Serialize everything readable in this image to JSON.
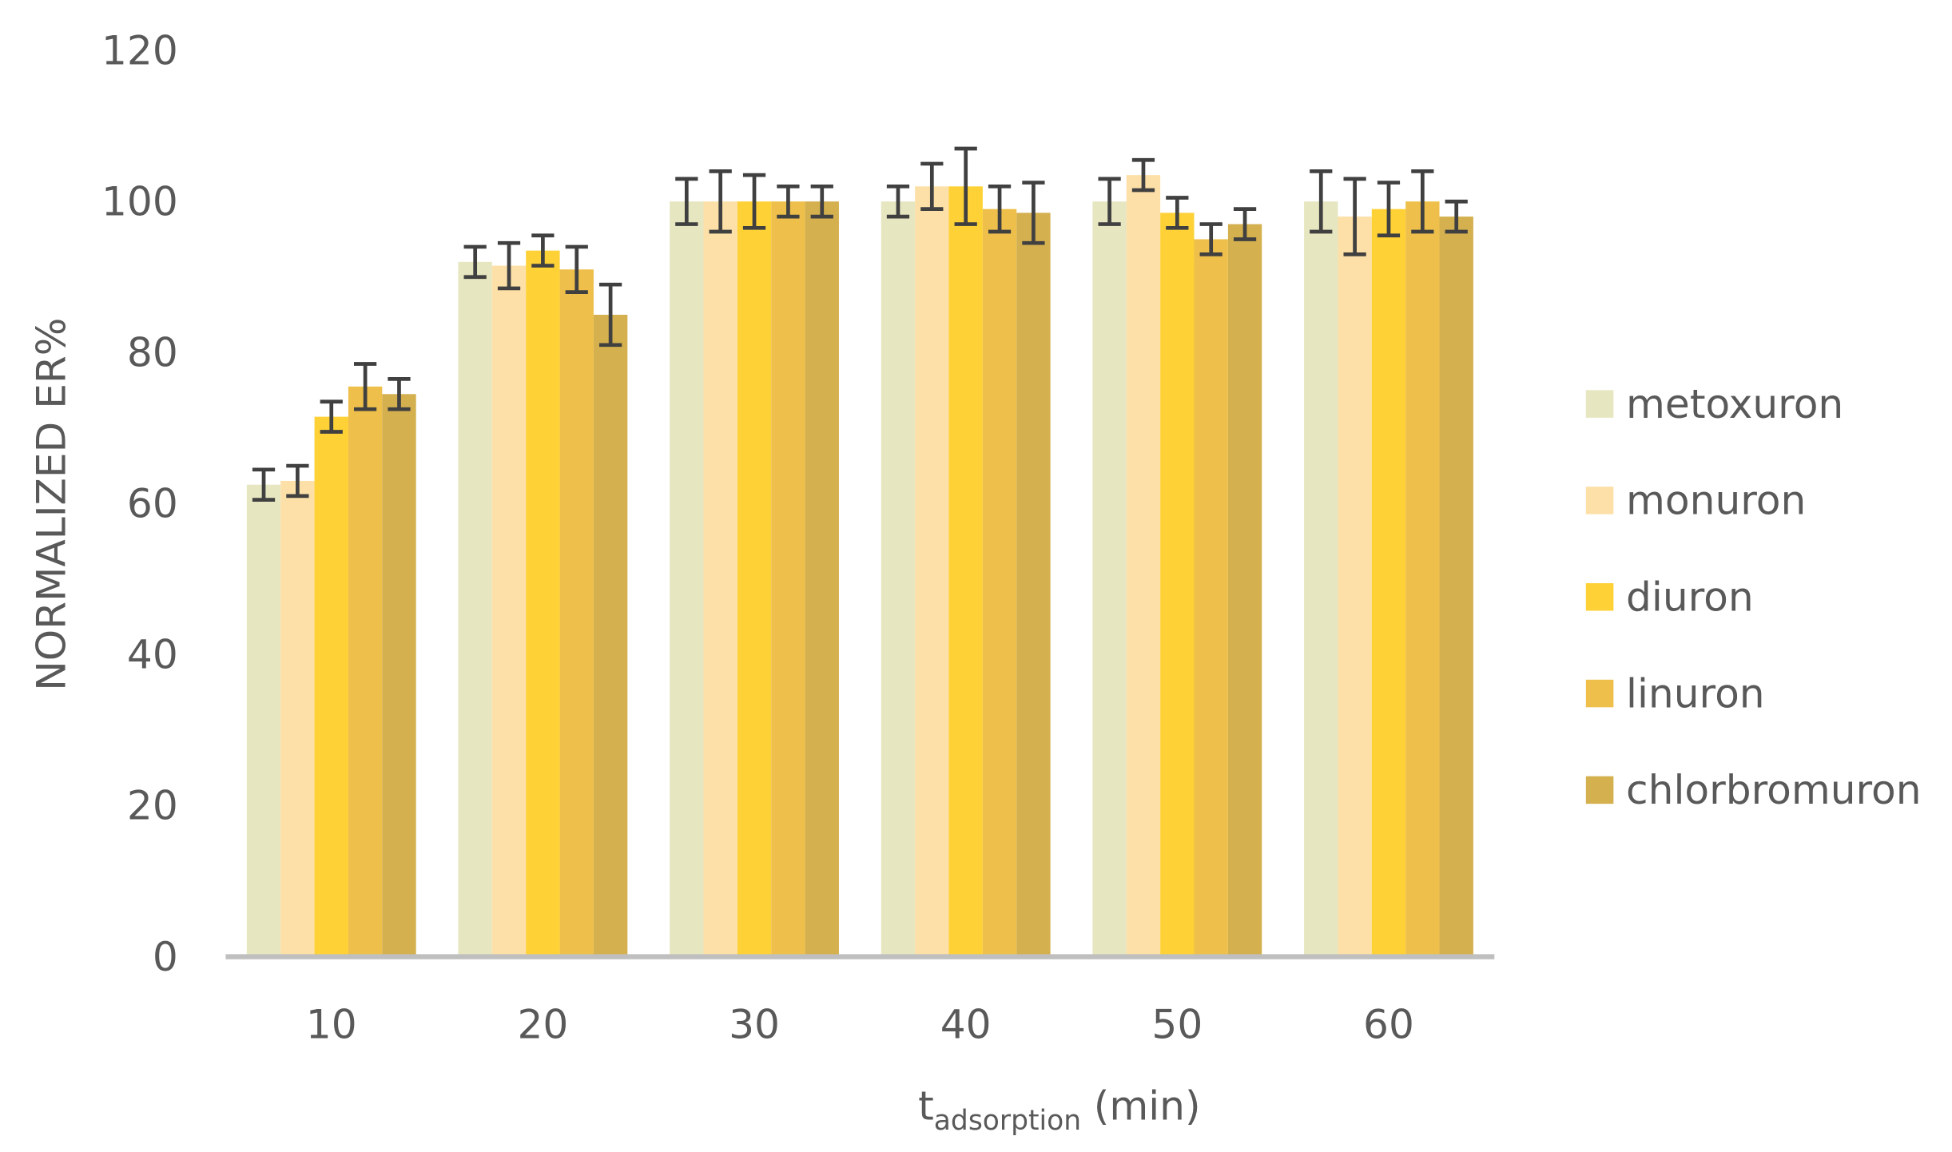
{
  "chart_data": {
    "type": "bar",
    "x_label": {
      "main": "t",
      "subscript": "adsorption",
      "suffix": "(min)"
    },
    "y_label": "NORMALIZED ER%",
    "categories": [
      "10",
      "20",
      "30",
      "40",
      "50",
      "60"
    ],
    "series": [
      {
        "name": "metoxuron",
        "color": "#e6e6c0",
        "values": [
          62.5,
          92,
          100,
          100,
          100,
          100
        ],
        "errors": [
          2,
          2,
          3,
          2,
          3,
          4
        ]
      },
      {
        "name": "monuron",
        "color": "#fde0a8",
        "values": [
          63,
          91.5,
          100,
          102,
          103.5,
          98
        ],
        "errors": [
          2,
          3,
          4,
          3,
          2,
          5
        ]
      },
      {
        "name": "diuron",
        "color": "#fed137",
        "values": [
          71.5,
          93.5,
          100,
          102,
          98.5,
          99
        ],
        "errors": [
          2,
          2,
          3.5,
          5,
          2,
          3.5
        ]
      },
      {
        "name": "linuron",
        "color": "#eec04b",
        "values": [
          75.5,
          91,
          100,
          99,
          95,
          100
        ],
        "errors": [
          3,
          3,
          2,
          3,
          2,
          4
        ]
      },
      {
        "name": "chlorbromuron",
        "color": "#d4b04f",
        "values": [
          74.5,
          85,
          100,
          98.5,
          97,
          98
        ],
        "errors": [
          2,
          4,
          2,
          4,
          2,
          2
        ]
      }
    ],
    "ylim": [
      0,
      120
    ],
    "yticks": [
      0,
      20,
      40,
      60,
      80,
      100,
      120
    ],
    "grid": false,
    "legend": "right"
  }
}
